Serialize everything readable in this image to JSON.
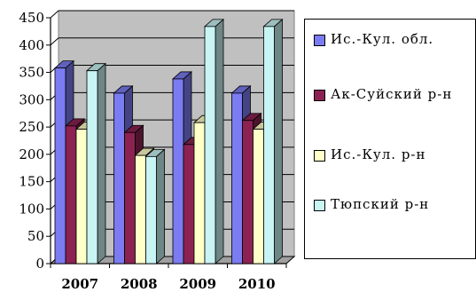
{
  "chart_data": {
    "type": "bar",
    "categories": [
      "2007",
      "2008",
      "2009",
      "2010"
    ],
    "series": [
      {
        "name": "Ис.-Кул. обл.",
        "values": [
          358,
          312,
          338,
          312
        ],
        "color": "#7B7BF2"
      },
      {
        "name": "Ак-Суйский р-н",
        "values": [
          252,
          240,
          218,
          262
        ],
        "color": "#8B2252"
      },
      {
        "name": "Ис.-Кул. р-н",
        "values": [
          246,
          198,
          258,
          246
        ],
        "color": "#FFFFC8"
      },
      {
        "name": "Тюпский р-н",
        "values": [
          353,
          196,
          434,
          434
        ],
        "color": "#C8F4F4"
      }
    ],
    "ylim": [
      0,
      450
    ],
    "yticks": [
      0,
      50,
      100,
      150,
      200,
      250,
      300,
      350,
      400,
      450
    ],
    "grid": true,
    "bar_style": "3d",
    "legend_position": "right"
  }
}
